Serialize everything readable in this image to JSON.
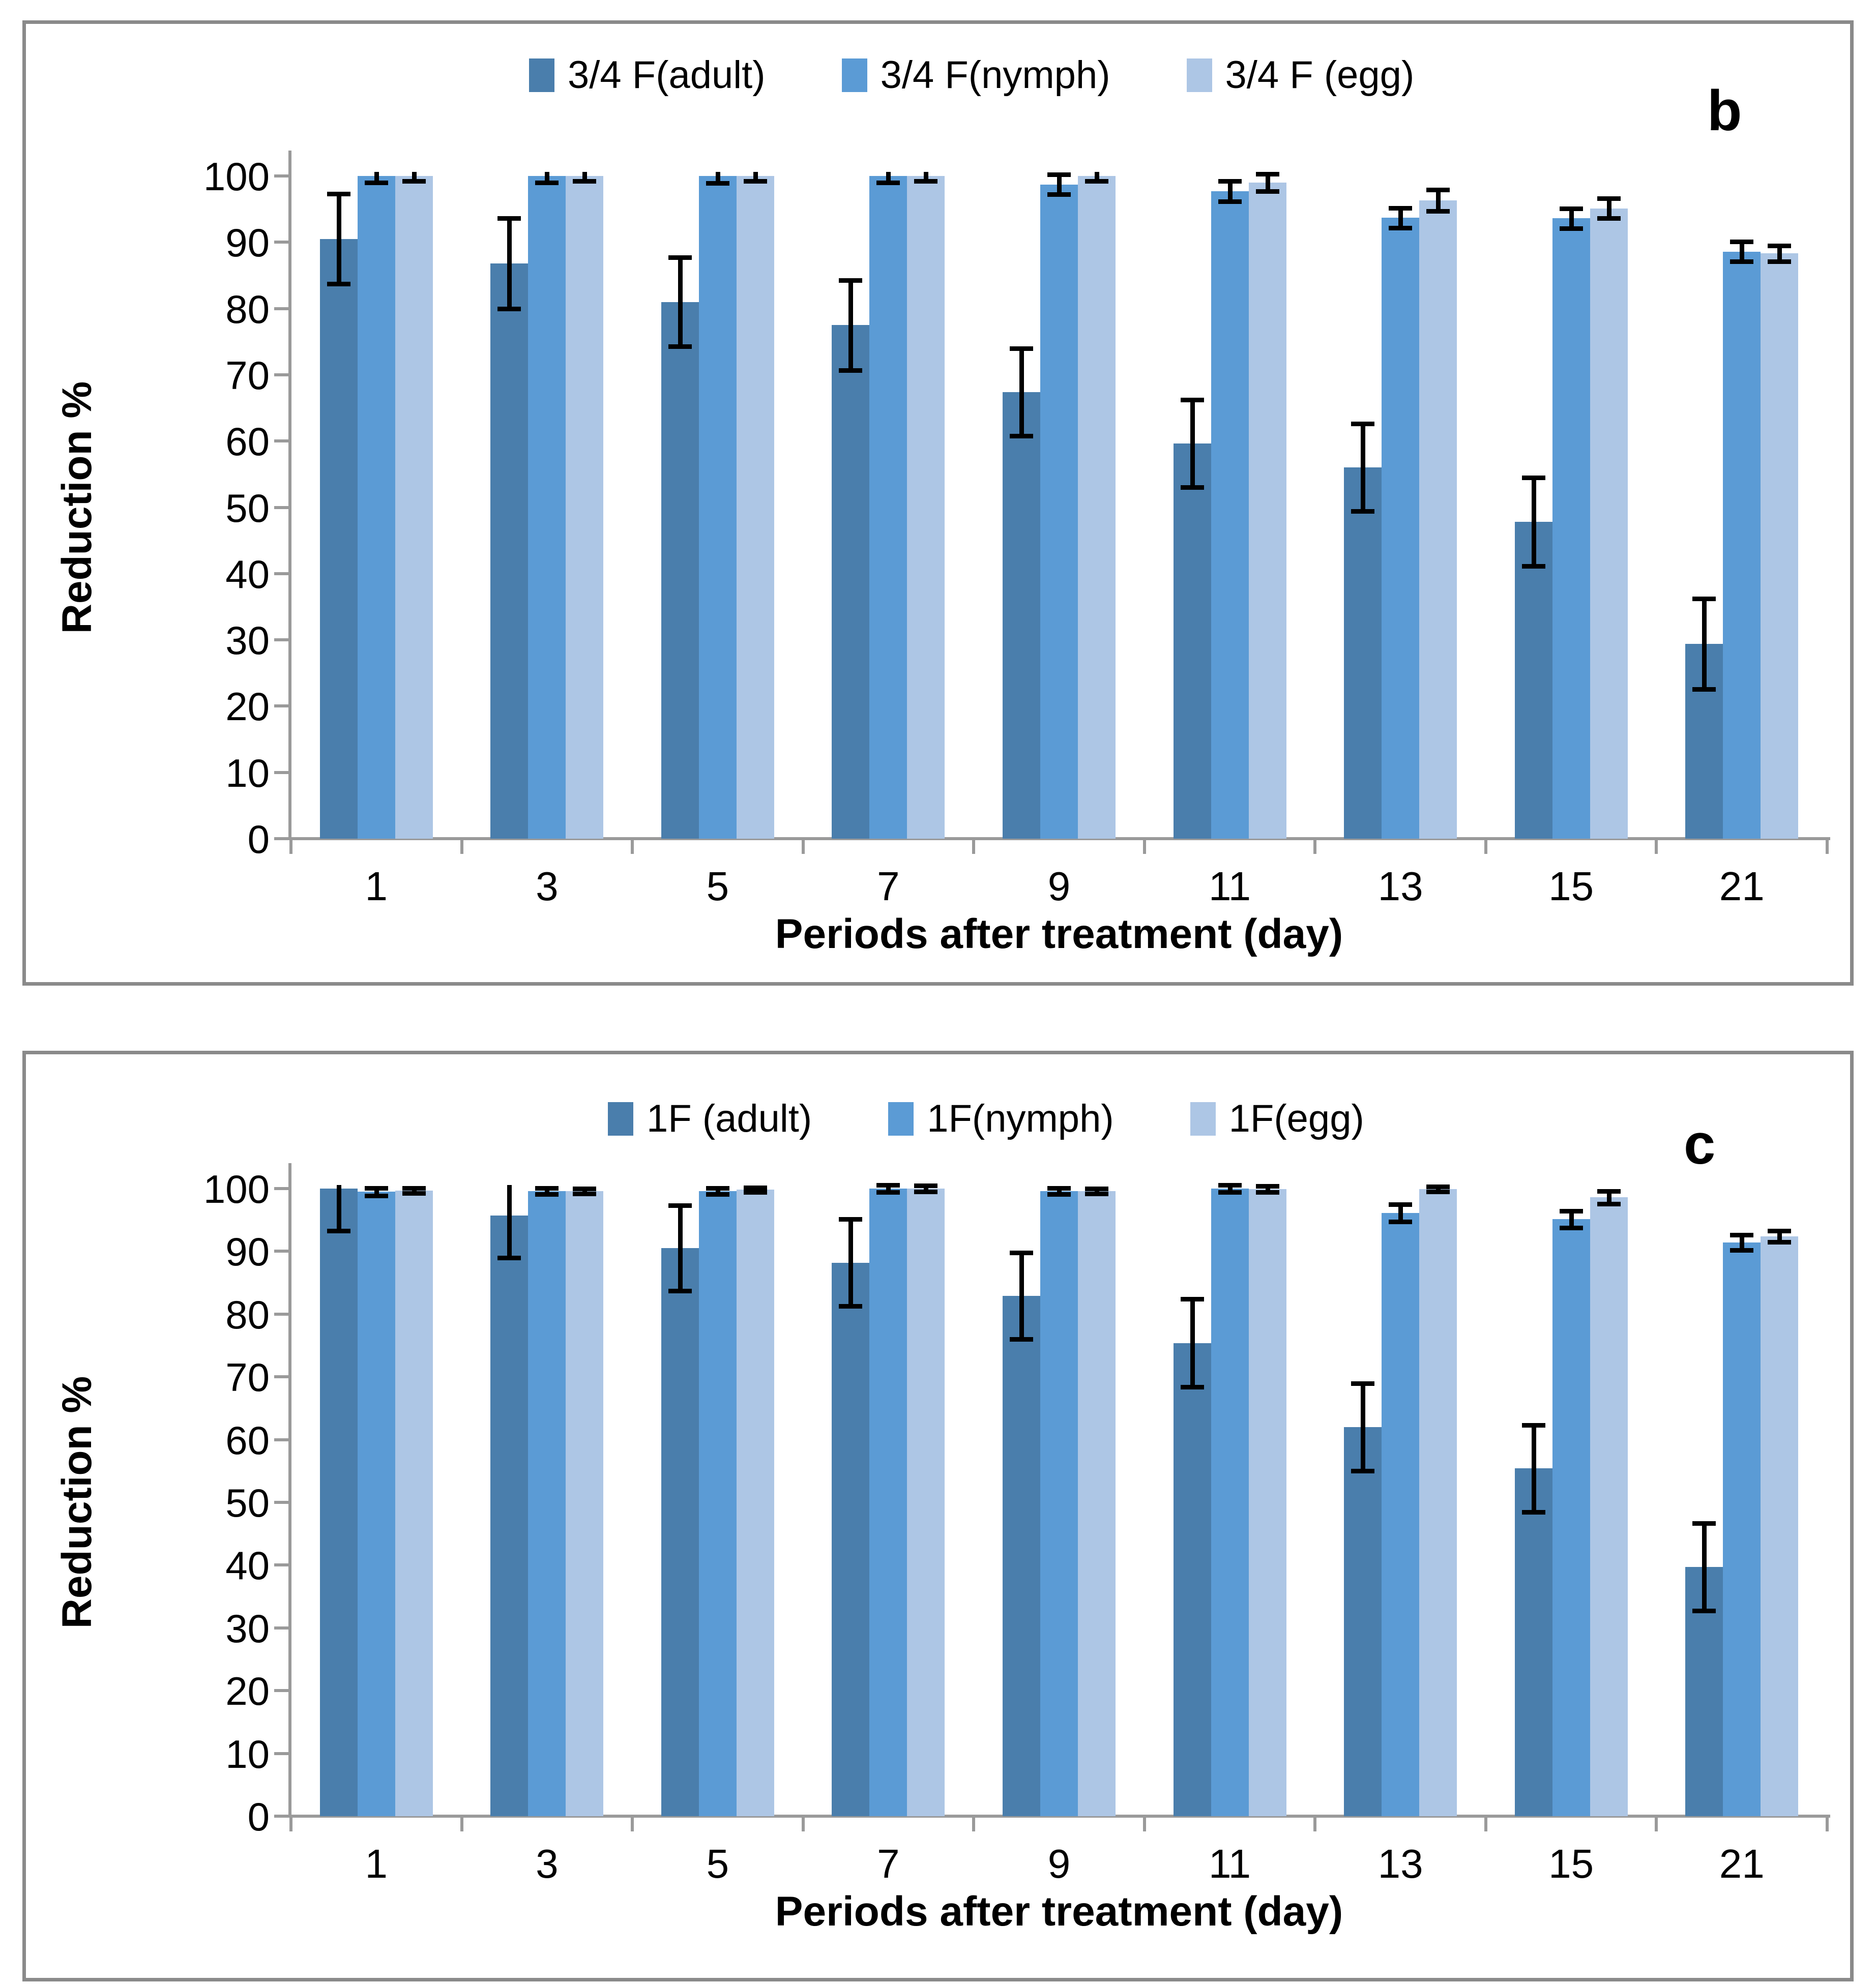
{
  "figure": {
    "ylabel": "Reduction %",
    "xlabel": "Periods after treatment (day)",
    "colors": {
      "series": [
        "#4A7EAC",
        "#5B9BD5",
        "#ADC6E5"
      ],
      "axis": "#9a9a9a",
      "panel_border": "#8a8a8a",
      "error_bar": "#000000"
    }
  },
  "chart_data": [
    {
      "type": "bar",
      "panel_label": "b",
      "title": "",
      "ylabel": "Reduction %",
      "xlabel": "Periods after treatment (day)",
      "ylim": [
        0,
        100
      ],
      "yticks": [
        0,
        10,
        20,
        30,
        40,
        50,
        60,
        70,
        80,
        90,
        100
      ],
      "categories": [
        "1",
        "3",
        "5",
        "7",
        "9",
        "11",
        "13",
        "15",
        "21"
      ],
      "grid": false,
      "legend_position": "top-center",
      "series": [
        {
          "name": "3/4 F(adult)",
          "color": "#4A7EAC",
          "values": [
            90.5,
            86.8,
            81.0,
            77.5,
            67.4,
            59.6,
            56.0,
            47.8,
            29.4
          ],
          "errors": [
            6.8,
            6.8,
            6.7,
            6.8,
            6.6,
            6.6,
            6.6,
            6.7,
            6.8
          ]
        },
        {
          "name": "3/4 F(nymph)",
          "color": "#5B9BD5",
          "values": [
            100,
            100,
            100,
            100,
            98.7,
            97.7,
            93.7,
            93.6,
            88.6
          ],
          "errors": [
            1.0,
            1.0,
            1.1,
            1.0,
            1.5,
            1.5,
            1.5,
            1.5,
            1.5
          ]
        },
        {
          "name": "3/4 F (egg)",
          "color": "#ADC6E5",
          "values": [
            100,
            100,
            100,
            100,
            100,
            99.0,
            96.3,
            95.1,
            88.3
          ],
          "errors": [
            0.8,
            0.8,
            0.8,
            0.8,
            0.8,
            1.3,
            1.6,
            1.5,
            1.2
          ]
        }
      ]
    },
    {
      "type": "bar",
      "panel_label": "c",
      "title": "",
      "ylabel": "Reduction %",
      "xlabel": "Periods after treatment (day)",
      "ylim": [
        0,
        100
      ],
      "yticks": [
        0,
        10,
        20,
        30,
        40,
        50,
        60,
        70,
        80,
        90,
        100
      ],
      "categories": [
        "1",
        "3",
        "5",
        "7",
        "9",
        "11",
        "13",
        "15",
        "21"
      ],
      "grid": false,
      "legend_position": "top-center",
      "series": [
        {
          "name": "1F (adult)",
          "color": "#4A7EAC",
          "values": [
            100,
            95.7,
            90.5,
            88.2,
            82.9,
            75.4,
            62.0,
            55.4,
            39.7
          ],
          "errors": [
            6.7,
            6.7,
            6.8,
            6.9,
            6.9,
            7.0,
            7.0,
            6.9,
            7.0
          ]
        },
        {
          "name": "1F(nymph)",
          "color": "#5B9BD5",
          "values": [
            99.5,
            99.6,
            99.6,
            100,
            99.6,
            100,
            96.1,
            95.1,
            91.4
          ],
          "errors": [
            0.6,
            0.5,
            0.5,
            0.6,
            0.5,
            0.6,
            1.4,
            1.3,
            1.2
          ]
        },
        {
          "name": "1F(egg)",
          "color": "#ADC6E5",
          "values": [
            99.7,
            99.6,
            99.8,
            100,
            99.6,
            99.9,
            99.9,
            98.6,
            92.4
          ],
          "errors": [
            0.4,
            0.4,
            0.4,
            0.5,
            0.4,
            0.5,
            0.4,
            1.0,
            0.9
          ]
        }
      ]
    }
  ]
}
